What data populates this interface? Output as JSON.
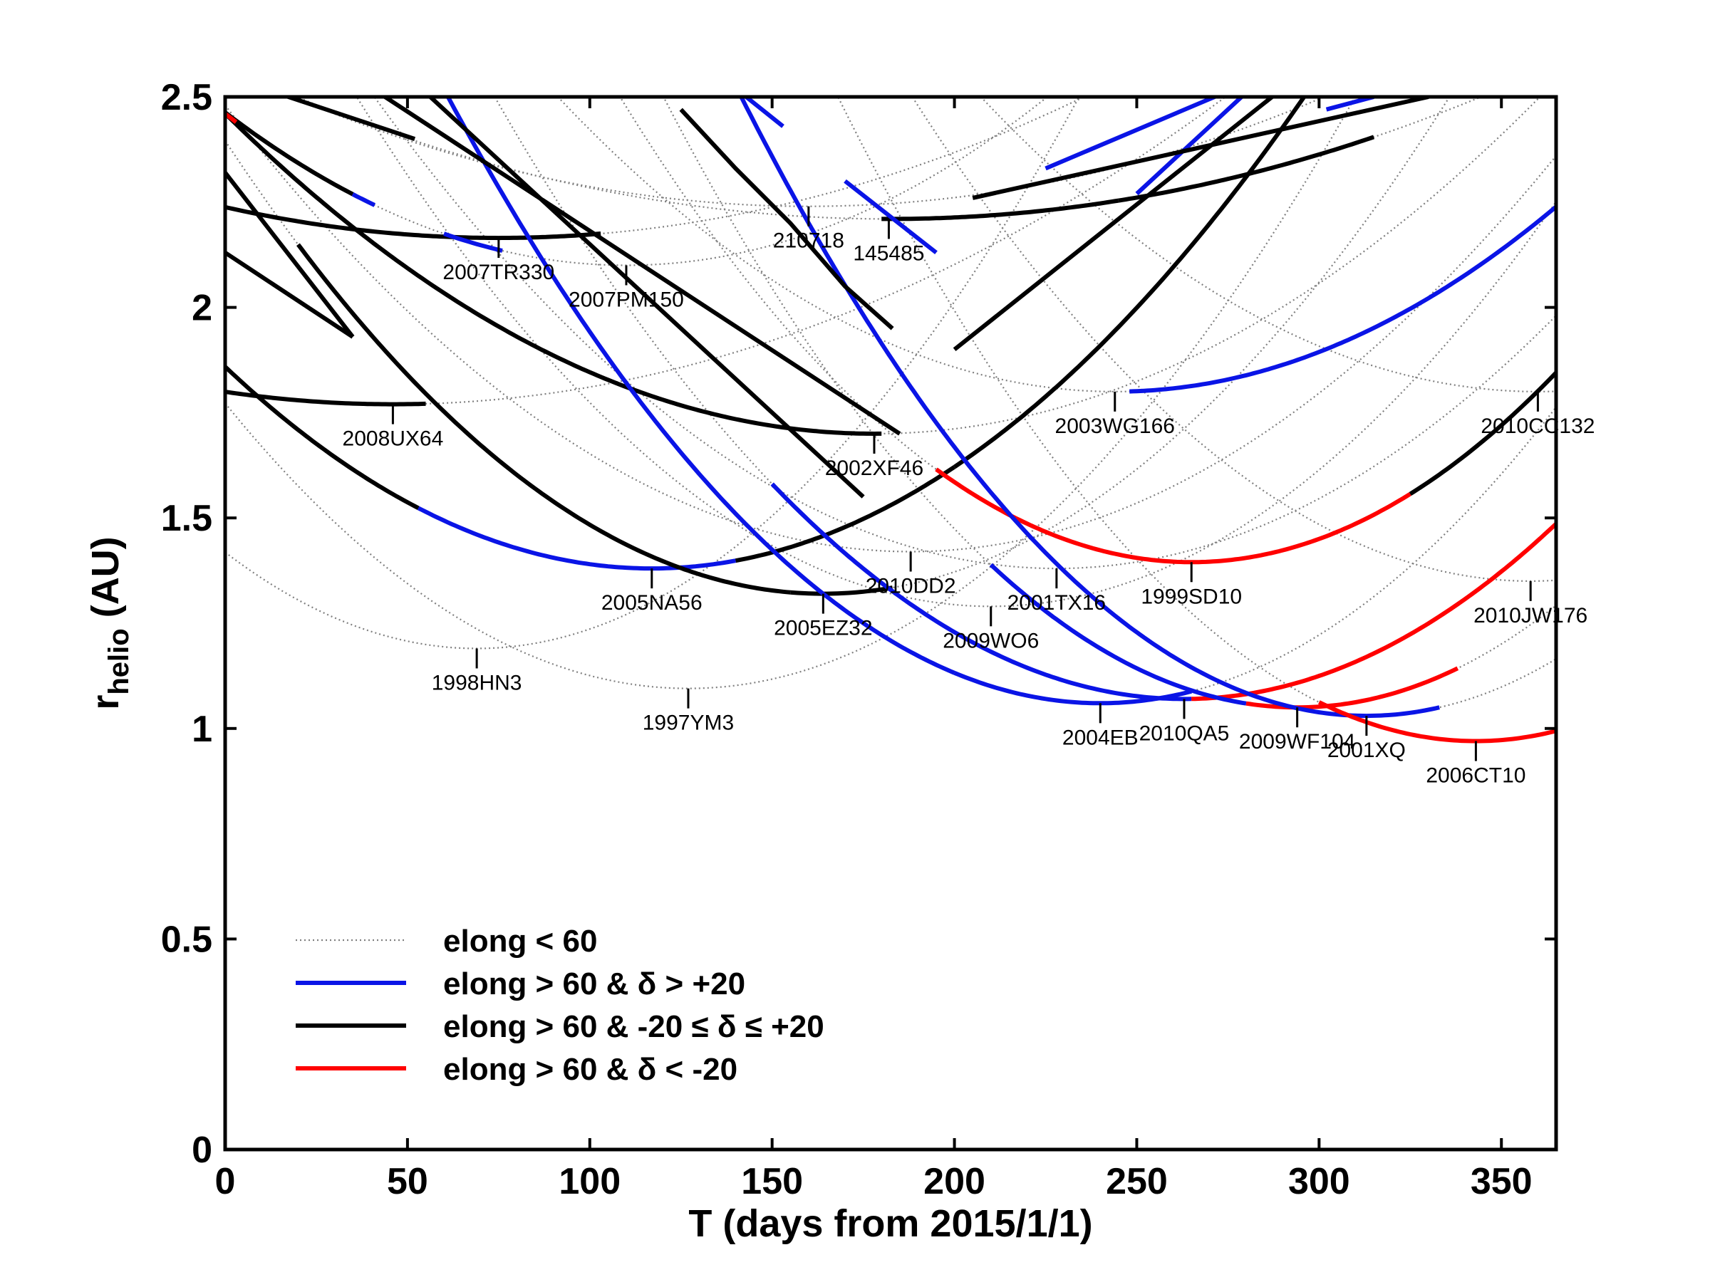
{
  "chart_data": {
    "type": "line",
    "xlabel": "T (days from 2015/1/1)",
    "ylabel_main": "r",
    "ylabel_sub": "helio",
    "ylabel_unit": " (AU)",
    "xlim": [
      0,
      365
    ],
    "ylim": [
      0,
      2.5
    ],
    "xticks": [
      0,
      50,
      100,
      150,
      200,
      250,
      300,
      350
    ],
    "yticks": [
      0,
      0.5,
      1,
      1.5,
      2,
      2.5
    ],
    "ytick_labels": [
      "0",
      "0.5",
      "1",
      "1.5",
      "2",
      "2.5"
    ],
    "colors": {
      "elong_low": "#808080",
      "north": "#0a14e6",
      "equatorial": "#000000",
      "south": "#ff0000"
    },
    "legend": {
      "position": "lower-left",
      "entries": [
        {
          "key": "elong_low",
          "style": "dotted",
          "label": "elong < 60"
        },
        {
          "key": "north",
          "style": "solid",
          "label": "elong > 60 & δ > +20"
        },
        {
          "key": "equatorial",
          "style": "solid",
          "label": "elong > 60 & -20 ≤ δ ≤ +20"
        },
        {
          "key": "south",
          "style": "solid",
          "label": "elong > 60 & δ < -20"
        }
      ]
    },
    "series": [
      {
        "name": "2005NA56",
        "min_t": 117,
        "min_r": 1.38,
        "k": 3.5e-05,
        "segments": [
          [
            0,
            53,
            "equatorial"
          ],
          [
            53,
            140,
            "north"
          ],
          [
            140,
            200,
            "equatorial"
          ],
          [
            200,
            315,
            "equatorial"
          ]
        ]
      },
      {
        "name": "1998HN3",
        "min_t": 69,
        "min_r": 1.19,
        "k": 4.8e-05,
        "segments": []
      },
      {
        "name": "1997YM3",
        "min_t": 127,
        "min_r": 1.095,
        "k": 4.2e-05,
        "segments": []
      },
      {
        "name": "2008UX64",
        "min_t": 46,
        "min_r": 1.77,
        "k": 1.4e-05,
        "segments": [
          [
            0,
            55,
            "equatorial"
          ]
        ]
      },
      {
        "name": "2007TR330",
        "min_t": 75,
        "min_r": 2.165,
        "k": 1.3e-05,
        "segments": [
          [
            0,
            103,
            "equatorial"
          ]
        ]
      },
      {
        "name": "2007PM150",
        "min_t": 110,
        "min_r": 2.1,
        "k": 3e-05,
        "segments": [
          [
            0,
            35,
            "equatorial"
          ],
          [
            35,
            41,
            "north"
          ],
          [
            60,
            76,
            "north"
          ]
        ]
      },
      {
        "name": "210718",
        "min_t": 160,
        "min_r": 2.24,
        "k": 1.3e-05,
        "segments": []
      },
      {
        "name": "145485",
        "min_t": 182,
        "min_r": 2.21,
        "k": 1.1e-05,
        "segments": [
          [
            180,
            245,
            "equatorial"
          ],
          [
            245,
            315,
            "equatorial"
          ]
        ]
      },
      {
        "name": "2002XF46",
        "min_t": 178,
        "min_r": 1.7,
        "k": 2.4e-05,
        "segments": [
          [
            0,
            180,
            "equatorial"
          ]
        ]
      },
      {
        "name": "2005EZ32",
        "min_t": 164,
        "min_r": 1.32,
        "k": 4e-05,
        "segments": [
          [
            20,
            155,
            "equatorial"
          ],
          [
            155,
            183,
            "equatorial"
          ]
        ]
      },
      {
        "name": "2010DD2",
        "min_t": 188,
        "min_r": 1.42,
        "k": 3e-05,
        "segments": []
      },
      {
        "name": "2009WO6",
        "min_t": 210,
        "min_r": 1.29,
        "k": 4e-05,
        "segments": []
      },
      {
        "name": "2001TX16",
        "min_t": 228,
        "min_r": 1.38,
        "k": 3.2e-05,
        "segments": []
      },
      {
        "name": "2003WG166",
        "min_t": 244,
        "min_r": 1.8,
        "k": 3e-05,
        "segments": [
          [
            248,
            365,
            "north"
          ]
        ]
      },
      {
        "name": "1999SD10",
        "min_t": 265,
        "min_r": 1.395,
        "k": 4.5e-05,
        "segments": [
          [
            195,
            325,
            "south"
          ],
          [
            325,
            365,
            "equatorial"
          ]
        ]
      },
      {
        "name": "2004EB",
        "min_t": 240,
        "min_r": 1.06,
        "k": 4.5e-05,
        "segments": [
          [
            0,
            200,
            "north"
          ],
          [
            200,
            265,
            "north"
          ]
        ]
      },
      {
        "name": "2010QA5",
        "min_t": 263,
        "min_r": 1.07,
        "k": 4e-05,
        "segments": [
          [
            150,
            265,
            "north"
          ],
          [
            265,
            365,
            "south"
          ]
        ]
      },
      {
        "name": "2009WF104",
        "min_t": 294,
        "min_r": 1.05,
        "k": 4.8e-05,
        "segments": [
          [
            210,
            280,
            "north"
          ],
          [
            280,
            338,
            "south"
          ]
        ]
      },
      {
        "name": "2001XQ",
        "min_t": 313,
        "min_r": 1.03,
        "k": 5e-05,
        "segments": [
          [
            120,
            280,
            "north"
          ],
          [
            280,
            333,
            "north"
          ]
        ]
      },
      {
        "name": "2006CT10",
        "min_t": 343,
        "min_r": 0.97,
        "k": 5e-05,
        "segments": [
          [
            300,
            365,
            "south"
          ]
        ]
      },
      {
        "name": "2010CC132",
        "min_t": 360,
        "min_r": 1.8,
        "k": 3e-05,
        "segments": []
      },
      {
        "name": "2010JW176",
        "min_t": 358,
        "min_r": 1.35,
        "k": 4e-05,
        "segments": []
      }
    ],
    "extra_tracks": [
      {
        "points": [
          [
            0,
            2.46
          ],
          [
            3,
            2.44
          ]
        ],
        "key": "south"
      },
      {
        "points": [
          [
            0,
            2.32
          ],
          [
            35,
            1.93
          ]
        ],
        "key": "equatorial"
      },
      {
        "points": [
          [
            0,
            2.13
          ],
          [
            35,
            1.93
          ]
        ],
        "key": "equatorial"
      },
      {
        "points": [
          [
            0,
            2.55
          ],
          [
            52,
            2.4
          ]
        ],
        "key": "equatorial"
      },
      {
        "points": [
          [
            35,
            2.55
          ],
          [
            185,
            1.7
          ]
        ],
        "key": "equatorial"
      },
      {
        "points": [
          [
            50,
            2.55
          ],
          [
            175,
            1.55
          ]
        ],
        "key": "equatorial"
      },
      {
        "points": [
          [
            125,
            2.47
          ],
          [
            140,
            2.33
          ],
          [
            155,
            2.2
          ],
          [
            170,
            2.05
          ],
          [
            183,
            1.95
          ]
        ],
        "key": "equatorial"
      },
      {
        "points": [
          [
            140,
            2.52
          ],
          [
            153,
            2.43
          ]
        ],
        "key": "north"
      },
      {
        "points": [
          [
            195,
            2.13
          ],
          [
            170,
            2.3
          ]
        ],
        "key": "north"
      },
      {
        "points": [
          [
            200,
            1.9
          ],
          [
            290,
            2.52
          ]
        ],
        "key": "equatorial"
      },
      {
        "points": [
          [
            225,
            2.33
          ],
          [
            285,
            2.55
          ]
        ],
        "key": "north"
      },
      {
        "points": [
          [
            250,
            2.27
          ],
          [
            285,
            2.55
          ]
        ],
        "key": "north"
      },
      {
        "points": [
          [
            205,
            2.26
          ],
          [
            330,
            2.5
          ]
        ],
        "key": "equatorial"
      },
      {
        "points": [
          [
            302,
            2.47
          ],
          [
            315,
            2.5
          ]
        ],
        "key": "north"
      }
    ]
  }
}
